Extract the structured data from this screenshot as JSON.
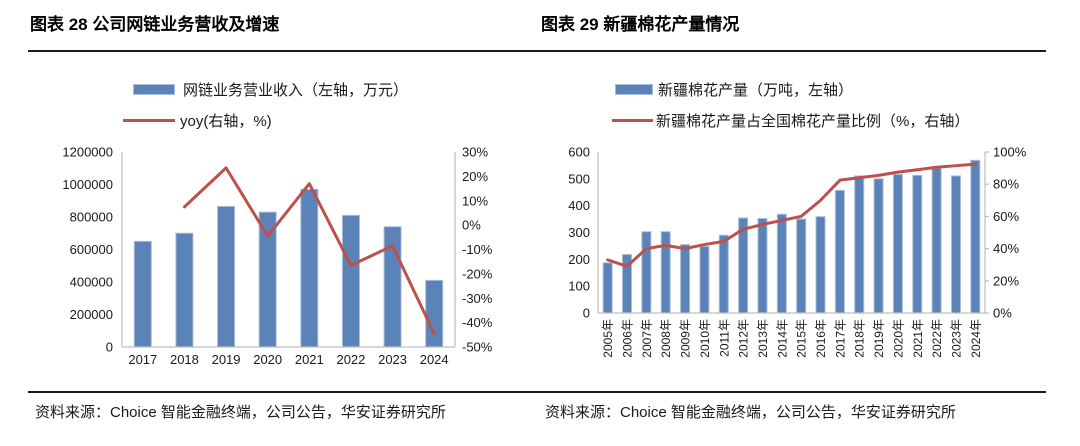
{
  "panels": [
    {
      "title": "图表 28 公司网链业务营收及增速",
      "legend_bar": "网链业务营业收入（左轴，万元）",
      "legend_line": "yoy(右轴，%)",
      "source": "资料来源：Choice 智能金融终端，公司公告，华安证券研究所"
    },
    {
      "title": "图表 29 新疆棉花产量情况",
      "legend_bar": "新疆棉花产量（万吨，左轴）",
      "legend_line": "新疆棉花产量占全国棉花产量比例（%，右轴）",
      "source": "资料来源：Choice 智能金融终端，公司公告，华安证券研究所"
    }
  ],
  "colors": {
    "bar_fill": "#5B83B7",
    "bar_border": "#A7BEDC",
    "line": "#BE504C",
    "axis": "#BFBFBF",
    "text": "#1a1a1a"
  },
  "chart_data": [
    {
      "type": "bar",
      "title": "图表 28 公司网链业务营收及增速",
      "categories": [
        "2017",
        "2018",
        "2019",
        "2020",
        "2021",
        "2022",
        "2023",
        "2024"
      ],
      "series": [
        {
          "name": "网链业务营业收入（左轴，万元）",
          "type": "bar",
          "axis": "left",
          "values": [
            650000,
            700000,
            865000,
            830000,
            970000,
            810000,
            740000,
            410000
          ]
        },
        {
          "name": "yoy(右轴，%)",
          "type": "line",
          "axis": "right",
          "values": [
            null,
            7.5,
            23.5,
            -4.5,
            17,
            -16.5,
            -8.5,
            -44.5
          ]
        }
      ],
      "left_axis": {
        "min": 0,
        "max": 1200000,
        "ticks": [
          "0",
          "200000",
          "400000",
          "600000",
          "800000",
          "1000000",
          "1200000"
        ]
      },
      "right_axis": {
        "min": -50,
        "max": 30,
        "ticks": [
          "-50%",
          "-40%",
          "-30%",
          "-20%",
          "-10%",
          "0%",
          "10%",
          "20%",
          "30%"
        ]
      },
      "grid": false,
      "legend_position": "top"
    },
    {
      "type": "bar",
      "title": "图表 29 新疆棉花产量情况",
      "categories": [
        "2005年",
        "2006年",
        "2007年",
        "2008年",
        "2009年",
        "2010年",
        "2011年",
        "2012年",
        "2013年",
        "2014年",
        "2015年",
        "2016年",
        "2017年",
        "2018年",
        "2019年",
        "2020年",
        "2021年",
        "2022年",
        "2023年",
        "2024年"
      ],
      "series": [
        {
          "name": "新疆棉花产量（万吨，左轴）",
          "type": "bar",
          "axis": "left",
          "values": [
            187,
            218,
            303,
            303,
            255,
            248,
            290,
            354,
            352,
            368,
            350,
            359,
            457,
            511,
            500,
            516,
            513,
            539,
            511,
            569
          ]
        },
        {
          "name": "新疆棉花产量占全国棉花产量比例（%，右轴）",
          "type": "line",
          "axis": "right",
          "values": [
            33,
            29,
            40,
            42,
            40,
            42.5,
            44.5,
            52,
            55,
            57.5,
            60,
            70,
            82.5,
            84,
            85.5,
            87.5,
            89,
            90.5,
            91.5,
            92.5
          ]
        }
      ],
      "left_axis": {
        "min": 0,
        "max": 600,
        "ticks": [
          "0",
          "100",
          "200",
          "300",
          "400",
          "500",
          "600"
        ]
      },
      "right_axis": {
        "min": 0,
        "max": 100,
        "ticks": [
          "0%",
          "20%",
          "40%",
          "60%",
          "80%",
          "100%"
        ]
      },
      "grid": false,
      "legend_position": "top"
    }
  ]
}
